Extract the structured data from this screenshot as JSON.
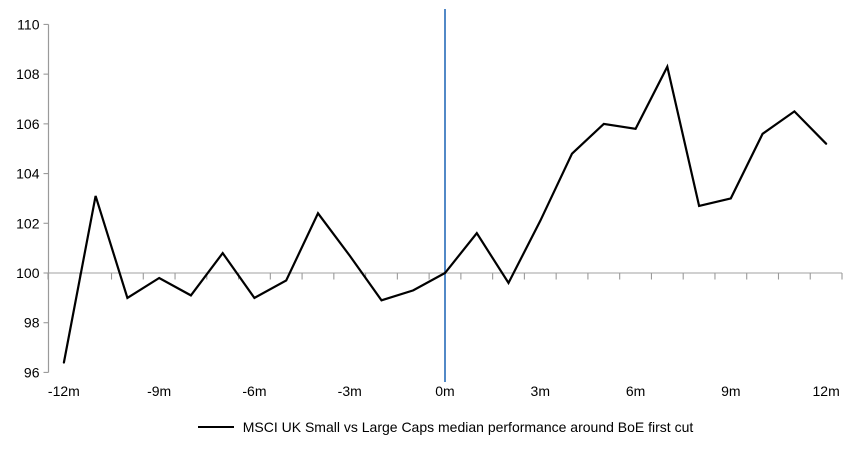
{
  "chart_data": {
    "type": "line",
    "title": "",
    "xlabel": "",
    "ylabel": "",
    "x": [
      -12,
      -11,
      -10,
      -9,
      -8,
      -7,
      -6,
      -5,
      -4,
      -3,
      -2,
      -1,
      0,
      1,
      2,
      3,
      4,
      5,
      6,
      7,
      8,
      9,
      10,
      11,
      12
    ],
    "series": [
      {
        "name": "MSCI UK Small vs Large Caps median performance around BoE first cut",
        "color": "#000000",
        "values": [
          96.4,
          103.1,
          99.0,
          99.8,
          99.1,
          100.8,
          99.0,
          99.7,
          102.4,
          100.7,
          98.9,
          99.3,
          100.0,
          101.6,
          99.6,
          102.1,
          104.8,
          106.0,
          105.8,
          108.3,
          102.7,
          103.0,
          105.6,
          106.5,
          105.2
        ]
      }
    ],
    "ylim": [
      96,
      110
    ],
    "xlim": [
      -12.5,
      12.5
    ],
    "baseline": 100,
    "y_ticks": [
      {
        "value": 96,
        "label": "96"
      },
      {
        "value": 98,
        "label": "98"
      },
      {
        "value": 100,
        "label": "100"
      },
      {
        "value": 102,
        "label": "102"
      },
      {
        "value": 104,
        "label": "104"
      },
      {
        "value": 106,
        "label": "106"
      },
      {
        "value": 108,
        "label": "108"
      },
      {
        "value": 110,
        "label": "110"
      }
    ],
    "x_ticks": [
      {
        "pos": -12,
        "label": "-12m"
      },
      {
        "pos": -9,
        "label": "-9m"
      },
      {
        "pos": -6,
        "label": "-6m"
      },
      {
        "pos": -3,
        "label": "-3m"
      },
      {
        "pos": 0,
        "label": "0m"
      },
      {
        "pos": 3,
        "label": "3m"
      },
      {
        "pos": 6,
        "label": "6m"
      },
      {
        "pos": 9,
        "label": "9m"
      },
      {
        "pos": 12,
        "label": "12m"
      }
    ],
    "event_line": {
      "x": 0,
      "color": "#5289c7"
    },
    "colors": {
      "value_axis": "#9a9a9a",
      "category_axis_line": "#b3b3b3",
      "tick": "#9a9a9a",
      "series": "#000000"
    },
    "grid": false,
    "legend_position": "bottom"
  },
  "legend": {
    "label": "MSCI UK Small vs Large Caps median performance around BoE first cut"
  }
}
